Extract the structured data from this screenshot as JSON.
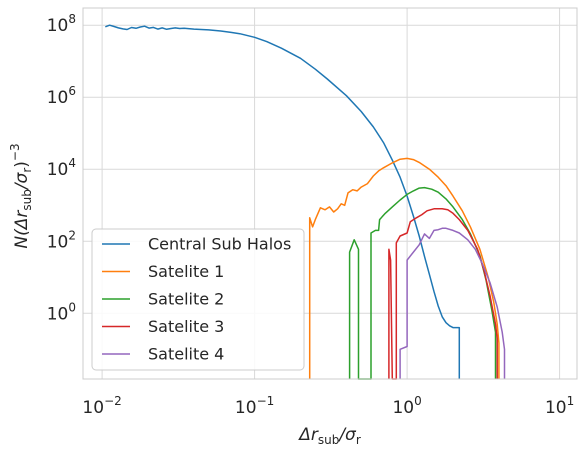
{
  "chart_data": {
    "type": "line",
    "title": "",
    "xlabel": {
      "base": "Δr",
      "sub": "sub",
      "mid": "/σ",
      "sub2": "r"
    },
    "ylabel": {
      "pre": "N(Δr",
      "sub": "sub",
      "mid": "/σ",
      "sub2": "r",
      "post": ")",
      "sup": "−3"
    },
    "xscale": "log",
    "yscale": "log",
    "xlim": [
      0.0075,
      13
    ],
    "ylim": [
      0.015,
      300000000
    ],
    "x_ticks": [
      {
        "value": 0.01,
        "base": "10",
        "exp": "−2"
      },
      {
        "value": 0.1,
        "base": "10",
        "exp": "−1"
      },
      {
        "value": 1,
        "base": "10",
        "exp": "0"
      },
      {
        "value": 10,
        "base": "10",
        "exp": "1"
      }
    ],
    "y_ticks": [
      {
        "value": 1,
        "base": "10",
        "exp": "0"
      },
      {
        "value": 100,
        "base": "10",
        "exp": "2"
      },
      {
        "value": 10000,
        "base": "10",
        "exp": "4"
      },
      {
        "value": 1000000,
        "base": "10",
        "exp": "6"
      },
      {
        "value": 100000000,
        "base": "10",
        "exp": "8"
      }
    ],
    "grid": true,
    "legend_position": "lower-left",
    "series": [
      {
        "name": "Central Sub Halos",
        "color": "#1f77b4",
        "points": [
          [
            0.0105,
            90000000.0
          ],
          [
            0.0112,
            100000000.0
          ],
          [
            0.012,
            92000000.0
          ],
          [
            0.0128,
            84000000.0
          ],
          [
            0.0137,
            79000000.0
          ],
          [
            0.0146,
            76000000.0
          ],
          [
            0.0156,
            86000000.0
          ],
          [
            0.0167,
            82000000.0
          ],
          [
            0.0178,
            89000000.0
          ],
          [
            0.019,
            94000000.0
          ],
          [
            0.0203,
            83000000.0
          ],
          [
            0.0217,
            87000000.0
          ],
          [
            0.0232,
            78000000.0
          ],
          [
            0.0248,
            84000000.0
          ],
          [
            0.0265,
            77000000.0
          ],
          [
            0.0283,
            81000000.0
          ],
          [
            0.0302,
            84000000.0
          ],
          [
            0.0323,
            81000000.0
          ],
          [
            0.0345,
            82000000.0
          ],
          [
            0.04,
            78000000.0
          ],
          [
            0.05,
            74000000.0
          ],
          [
            0.06,
            69000000.0
          ],
          [
            0.07,
            63000000.0
          ],
          [
            0.08,
            58000000.0
          ],
          [
            0.1,
            46000000.0
          ],
          [
            0.12,
            35000000.0
          ],
          [
            0.15,
            23000000.0
          ],
          [
            0.2,
            12000000.0
          ],
          [
            0.25,
            6000000.0
          ],
          [
            0.3,
            3200000.0
          ],
          [
            0.4,
            1100000.0
          ],
          [
            0.5,
            400000.0
          ],
          [
            0.6,
            150000.0
          ],
          [
            0.7,
            55000.0
          ],
          [
            0.8,
            18000.0
          ],
          [
            0.9,
            6000.0
          ],
          [
            1.0,
            1800.0
          ],
          [
            1.1,
            500
          ],
          [
            1.2,
            140
          ],
          [
            1.3,
            38
          ],
          [
            1.4,
            12
          ],
          [
            1.5,
            4
          ],
          [
            1.6,
            1.6
          ],
          [
            1.7,
            0.8
          ],
          [
            1.8,
            0.55
          ],
          [
            1.9,
            0.45
          ],
          [
            2.0,
            0.4
          ],
          [
            2.2,
            0.4
          ],
          [
            2.2,
            0.015
          ]
        ]
      },
      {
        "name": "Satelite 1",
        "color": "#ff7f0e",
        "points": [
          [
            0.23,
            0.015
          ],
          [
            0.23,
            450
          ],
          [
            0.24,
            250
          ],
          [
            0.25,
            400
          ],
          [
            0.27,
            850
          ],
          [
            0.29,
            750
          ],
          [
            0.31,
            900
          ],
          [
            0.33,
            650
          ],
          [
            0.35,
            800
          ],
          [
            0.37,
            1100
          ],
          [
            0.39,
            1000
          ],
          [
            0.41,
            2200
          ],
          [
            0.44,
            2700
          ],
          [
            0.47,
            2500
          ],
          [
            0.5,
            3200
          ],
          [
            0.55,
            4000
          ],
          [
            0.6,
            6500
          ],
          [
            0.65,
            9000
          ],
          [
            0.7,
            11000
          ],
          [
            0.8,
            15000
          ],
          [
            0.9,
            19000
          ],
          [
            1.0,
            20000
          ],
          [
            1.1,
            18500
          ],
          [
            1.2,
            15500
          ],
          [
            1.4,
            10000
          ],
          [
            1.6,
            6000
          ],
          [
            1.8,
            3500
          ],
          [
            2.0,
            1800
          ],
          [
            2.3,
            700
          ],
          [
            2.6,
            250
          ],
          [
            3.0,
            60
          ],
          [
            3.4,
            10
          ],
          [
            3.7,
            2
          ],
          [
            3.9,
            0.5
          ],
          [
            4.0,
            0.15
          ],
          [
            4.0,
            0.015
          ]
        ]
      },
      {
        "name": "Satelite 2",
        "color": "#2ca02c",
        "points": [
          [
            0.42,
            0.015
          ],
          [
            0.42,
            50
          ],
          [
            0.45,
            110
          ],
          [
            0.48,
            60
          ],
          [
            0.48,
            0.015
          ],
          [
            0.58,
            0.015
          ],
          [
            0.58,
            170
          ],
          [
            0.62,
            200
          ],
          [
            0.65,
            200
          ],
          [
            0.66,
            400
          ],
          [
            0.72,
            600
          ],
          [
            0.8,
            900
          ],
          [
            0.9,
            1400
          ],
          [
            1.0,
            2000
          ],
          [
            1.1,
            2500
          ],
          [
            1.2,
            3000
          ],
          [
            1.3,
            3100
          ],
          [
            1.45,
            2800
          ],
          [
            1.6,
            2300
          ],
          [
            1.8,
            1500
          ],
          [
            2.0,
            900
          ],
          [
            2.3,
            400
          ],
          [
            2.6,
            160
          ],
          [
            3.0,
            40
          ],
          [
            3.3,
            8
          ],
          [
            3.6,
            1.2
          ],
          [
            3.8,
            0.3
          ],
          [
            3.8,
            0.015
          ]
        ]
      },
      {
        "name": "Satelite 3",
        "color": "#d62728",
        "points": [
          [
            0.76,
            0.015
          ],
          [
            0.76,
            60
          ],
          [
            0.78,
            30
          ],
          [
            0.8,
            0.015
          ],
          [
            0.85,
            0.015
          ],
          [
            0.85,
            90
          ],
          [
            0.9,
            140
          ],
          [
            1.0,
            170
          ],
          [
            1.05,
            350
          ],
          [
            1.15,
            450
          ],
          [
            1.25,
            550
          ],
          [
            1.35,
            700
          ],
          [
            1.5,
            800
          ],
          [
            1.7,
            800
          ],
          [
            1.85,
            750
          ],
          [
            2.0,
            600
          ],
          [
            2.2,
            400
          ],
          [
            2.5,
            200
          ],
          [
            2.9,
            60
          ],
          [
            3.2,
            15
          ],
          [
            3.5,
            3
          ],
          [
            3.8,
            0.5
          ],
          [
            3.9,
            0.2
          ],
          [
            3.9,
            0.015
          ]
        ]
      },
      {
        "name": "Satelite 4",
        "color": "#9467bd",
        "points": [
          [
            0.9,
            0.015
          ],
          [
            0.9,
            0.1
          ],
          [
            1.0,
            0.12
          ],
          [
            1.0,
            30
          ],
          [
            1.1,
            50
          ],
          [
            1.2,
            80
          ],
          [
            1.3,
            160
          ],
          [
            1.4,
            120
          ],
          [
            1.5,
            200
          ],
          [
            1.6,
            210
          ],
          [
            1.7,
            230
          ],
          [
            1.8,
            230
          ],
          [
            2.0,
            200
          ],
          [
            2.2,
            170
          ],
          [
            2.5,
            110
          ],
          [
            2.8,
            60
          ],
          [
            3.1,
            25
          ],
          [
            3.5,
            7
          ],
          [
            3.9,
            1.5
          ],
          [
            4.2,
            0.3
          ],
          [
            4.35,
            0.1
          ],
          [
            4.35,
            0.015
          ]
        ]
      }
    ]
  }
}
